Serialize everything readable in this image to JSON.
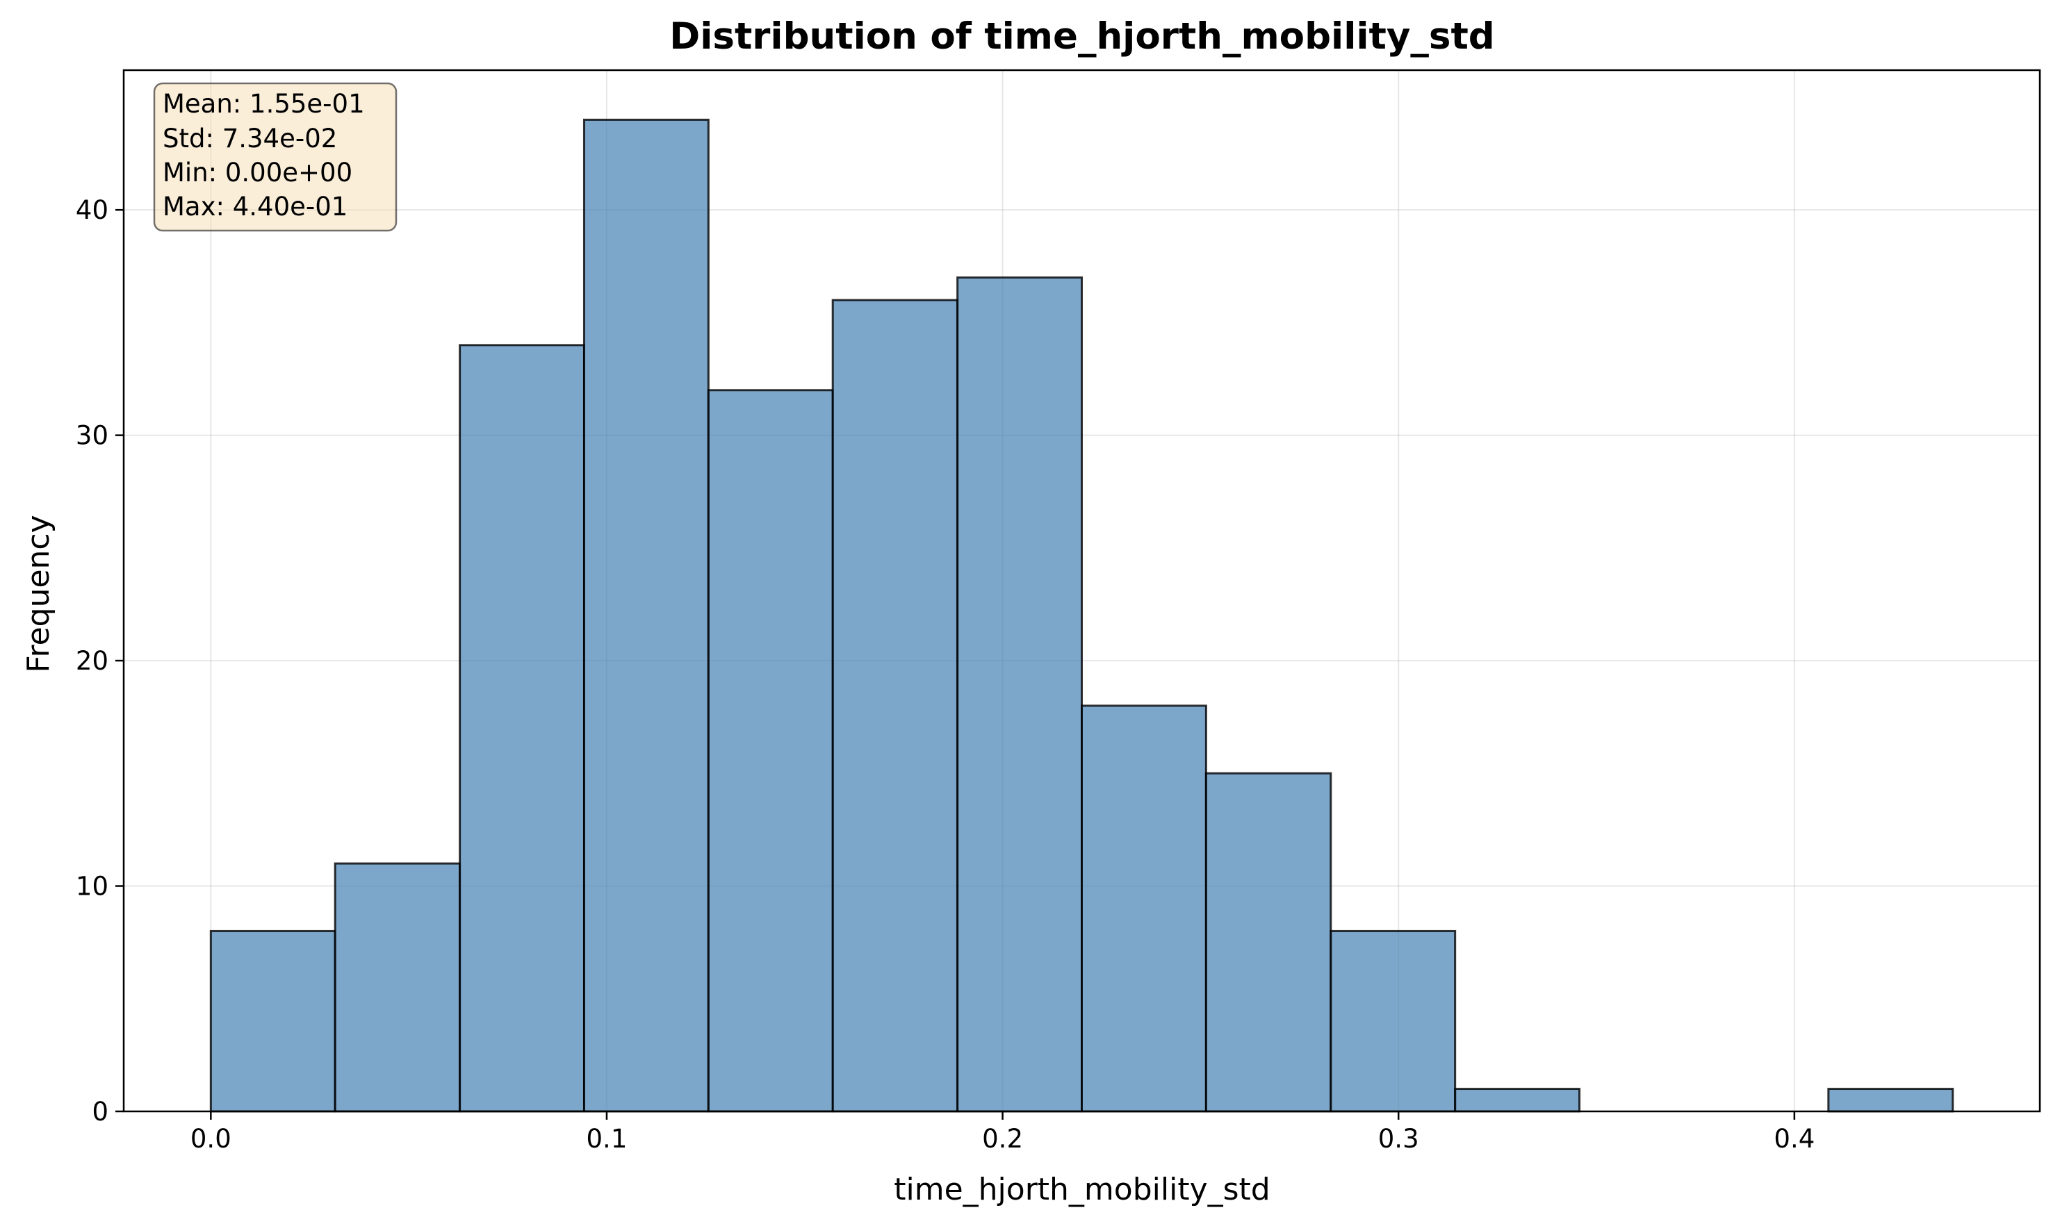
{
  "chart_data": {
    "type": "bar",
    "title": "Distribution of time_hjorth_mobility_std",
    "xlabel": "time_hjorth_mobility_std",
    "ylabel": "Frequency",
    "bin_edges": [
      0.0,
      0.0314,
      0.0629,
      0.0943,
      0.1257,
      0.1571,
      0.1886,
      0.22,
      0.2514,
      0.2829,
      0.3143,
      0.3457,
      0.3771,
      0.4086,
      0.44
    ],
    "values": [
      8,
      11,
      34,
      44,
      32,
      36,
      37,
      18,
      15,
      8,
      1,
      0,
      0,
      1
    ],
    "xlim": [
      -0.022,
      0.462
    ],
    "ylim": [
      0,
      46.2
    ],
    "xticks": [
      0.0,
      0.1,
      0.2,
      0.3,
      0.4
    ],
    "xtick_labels": [
      "0.0",
      "0.1",
      "0.2",
      "0.3",
      "0.4"
    ],
    "yticks": [
      0,
      10,
      20,
      30,
      40
    ],
    "ytick_labels": [
      "0",
      "10",
      "20",
      "30",
      "40"
    ],
    "grid": true,
    "bar_color": "#4682b4",
    "stats_box": [
      "Mean: 1.55e-01",
      "Std: 7.34e-02",
      "Min: 0.00e+00",
      "Max: 4.40e-01"
    ],
    "stats_box_color": "#f5deb3"
  }
}
